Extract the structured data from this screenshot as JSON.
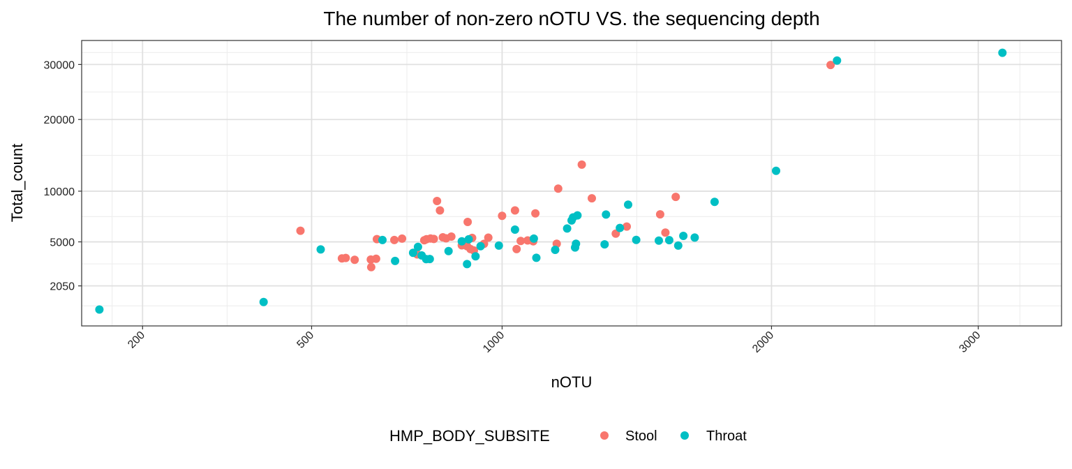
{
  "chart_data": {
    "type": "scatter",
    "title": "The number of non-zero nOTU VS. the sequencing depth",
    "xlabel": "nOTU",
    "ylabel": "Total_count",
    "x_scale": "sqrt",
    "y_scale": "sqrt",
    "xlim": [
      125,
      3460
    ],
    "ylim": [
      490,
      35000
    ],
    "x_ticks": [
      200,
      500,
      1000,
      2000,
      3000
    ],
    "x_tick_labels": [
      "200",
      "500",
      "1000",
      "2000",
      "3000"
    ],
    "y_ticks": [
      2050,
      5000,
      10000,
      20000,
      30000
    ],
    "y_tick_labels": [
      "2050",
      "5000",
      "10000",
      "20000",
      "30000"
    ],
    "grid": true,
    "legend": {
      "title": "HMP_BODY_SUBSITE",
      "position": "bottom",
      "entries": [
        {
          "label": "Stool",
          "color": "#F8766D"
        },
        {
          "label": "Throat",
          "color": "#00BFC4"
        }
      ]
    },
    "series": [
      {
        "name": "Stool",
        "color": "#F8766D",
        "points": [
          [
            476,
            5950
          ],
          [
            568,
            3740
          ],
          [
            577,
            3770
          ],
          [
            598,
            3640
          ],
          [
            637,
            3660
          ],
          [
            638,
            3150
          ],
          [
            650,
            3720
          ],
          [
            652,
            5230
          ],
          [
            696,
            5150
          ],
          [
            716,
            5270
          ],
          [
            753,
            4150
          ],
          [
            756,
            4030
          ],
          [
            775,
            5130
          ],
          [
            781,
            5220
          ],
          [
            792,
            5280
          ],
          [
            801,
            5240
          ],
          [
            810,
            8900
          ],
          [
            818,
            7900
          ],
          [
            826,
            5380
          ],
          [
            835,
            5290
          ],
          [
            850,
            5440
          ],
          [
            880,
            4720
          ],
          [
            895,
            4650
          ],
          [
            897,
            6760
          ],
          [
            905,
            4430
          ],
          [
            910,
            5330
          ],
          [
            915,
            4320
          ],
          [
            945,
            4840
          ],
          [
            958,
            5350
          ],
          [
            1000,
            7360
          ],
          [
            1040,
            7900
          ],
          [
            1045,
            4430
          ],
          [
            1058,
            5080
          ],
          [
            1080,
            5120
          ],
          [
            1098,
            5050
          ],
          [
            1105,
            7600
          ],
          [
            1175,
            4850
          ],
          [
            1180,
            10300
          ],
          [
            1260,
            13300
          ],
          [
            1295,
            9200
          ],
          [
            1380,
            5690
          ],
          [
            1420,
            6330
          ],
          [
            1545,
            7500
          ],
          [
            1565,
            5790
          ],
          [
            1605,
            9350
          ],
          [
            2265,
            29900
          ]
        ]
      },
      {
        "name": "Throat",
        "color": "#00BFC4",
        "points": [
          [
            145,
            1000
          ],
          [
            401,
            1290
          ],
          [
            520,
            4400
          ],
          [
            666,
            5150
          ],
          [
            698,
            3560
          ],
          [
            745,
            4150
          ],
          [
            758,
            4600
          ],
          [
            768,
            3950
          ],
          [
            780,
            3690
          ],
          [
            790,
            3700
          ],
          [
            842,
            4280
          ],
          [
            880,
            5050
          ],
          [
            895,
            3350
          ],
          [
            900,
            5210
          ],
          [
            920,
            3890
          ],
          [
            935,
            4650
          ],
          [
            990,
            4700
          ],
          [
            1040,
            6050
          ],
          [
            1100,
            5270
          ],
          [
            1108,
            3780
          ],
          [
            1170,
            4370
          ],
          [
            1210,
            6150
          ],
          [
            1225,
            6900
          ],
          [
            1230,
            7200
          ],
          [
            1237,
            4550
          ],
          [
            1240,
            4850
          ],
          [
            1245,
            7400
          ],
          [
            1340,
            4800
          ],
          [
            1345,
            7480
          ],
          [
            1395,
            6200
          ],
          [
            1425,
            8500
          ],
          [
            1455,
            5160
          ],
          [
            1540,
            5100
          ],
          [
            1580,
            5140
          ],
          [
            1615,
            4700
          ],
          [
            1635,
            5500
          ],
          [
            1680,
            5360
          ],
          [
            1760,
            8800
          ],
          [
            2020,
            12500
          ],
          [
            2295,
            30800
          ],
          [
            3130,
            32400
          ]
        ]
      }
    ]
  }
}
